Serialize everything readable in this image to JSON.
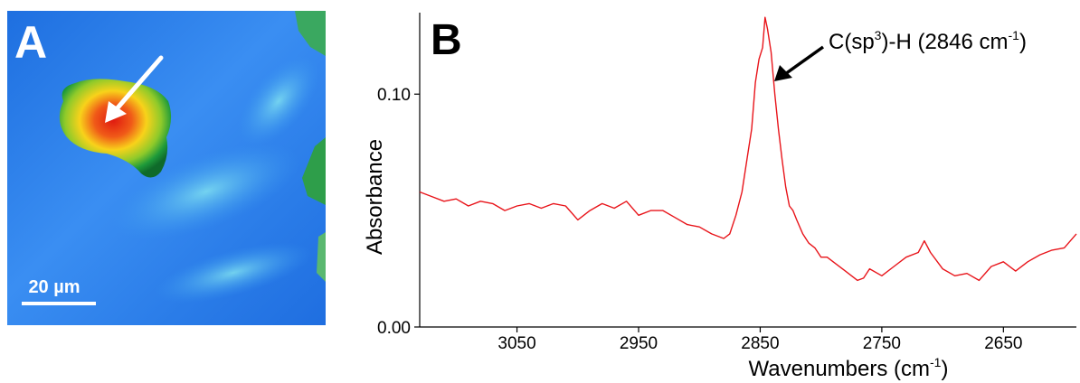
{
  "panel_a": {
    "label": "A",
    "scalebar_label": "20 µm",
    "colors": {
      "background": "#2f80ec",
      "hotspot_core": "#e82a14",
      "hotspot_mid": "#f8d21a",
      "hotspot_edge": "#1e9a3a",
      "arrow": "#ffffff"
    }
  },
  "panel_b": {
    "label": "B",
    "annotation": {
      "main": "C(sp",
      "sup1": "3",
      "after": ")-H   (2846 cm",
      "sup2": "-1",
      "close": ")"
    },
    "xlabel_main": "Wavenumbers (cm",
    "xlabel_sup": "-1",
    "xlabel_close": ")"
  },
  "chart_data": {
    "type": "line",
    "title": "",
    "xlabel": "Wavenumbers (cm-1)",
    "ylabel": "Absorbance",
    "xlim": [
      3130,
      2590
    ],
    "ylim": [
      0.0,
      0.135
    ],
    "x_reversed": true,
    "xticks": [
      3050,
      2950,
      2850,
      2750,
      2650
    ],
    "yticks": [
      0.0,
      0.1
    ],
    "ytick_labels": [
      "0.00",
      "0.10"
    ],
    "color": "#e8141a",
    "series": [
      {
        "x": [
          3130,
          3120,
          3110,
          3100,
          3090,
          3080,
          3070,
          3060,
          3050,
          3040,
          3030,
          3020,
          3010,
          3000,
          2990,
          2980,
          2970,
          2960,
          2950,
          2940,
          2930,
          2920,
          2910,
          2900,
          2890,
          2880,
          2875,
          2870,
          2865,
          2860,
          2857,
          2854,
          2851,
          2848,
          2846,
          2844,
          2841,
          2838,
          2835,
          2832,
          2829,
          2826,
          2823,
          2820,
          2815,
          2810,
          2805,
          2800,
          2795,
          2790,
          2780,
          2770,
          2765,
          2760,
          2750,
          2740,
          2730,
          2720,
          2715,
          2710,
          2700,
          2690,
          2680,
          2670,
          2660,
          2650,
          2640,
          2630,
          2620,
          2610,
          2600,
          2590
        ],
        "y": [
          0.058,
          0.056,
          0.054,
          0.055,
          0.052,
          0.054,
          0.053,
          0.05,
          0.052,
          0.053,
          0.051,
          0.053,
          0.052,
          0.046,
          0.05,
          0.053,
          0.051,
          0.054,
          0.048,
          0.05,
          0.05,
          0.047,
          0.044,
          0.043,
          0.04,
          0.038,
          0.04,
          0.048,
          0.058,
          0.075,
          0.085,
          0.105,
          0.115,
          0.12,
          0.133,
          0.128,
          0.118,
          0.1,
          0.085,
          0.072,
          0.06,
          0.052,
          0.05,
          0.046,
          0.04,
          0.036,
          0.034,
          0.03,
          0.03,
          0.028,
          0.024,
          0.02,
          0.021,
          0.025,
          0.022,
          0.026,
          0.03,
          0.032,
          0.037,
          0.032,
          0.025,
          0.022,
          0.023,
          0.02,
          0.026,
          0.028,
          0.024,
          0.028,
          0.031,
          0.033,
          0.034,
          0.04
        ]
      }
    ]
  }
}
